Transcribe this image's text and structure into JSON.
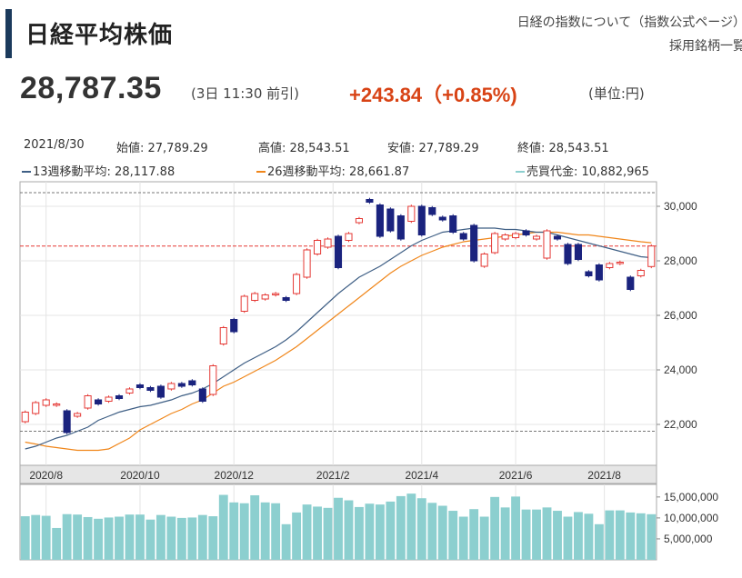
{
  "header": {
    "title": "日経平均株価",
    "links": [
      "日経の指数について（指数公式ページ）",
      "採用銘柄一覧"
    ]
  },
  "quote": {
    "price": "28,787.35",
    "time": "(3日 11:30 前引)",
    "change": "+243.84（+0.85%)",
    "unit": "(単位:円)"
  },
  "ohlc": {
    "date": "2021/8/30",
    "open": "始値: 27,789.29",
    "high": "高値: 28,543.51",
    "low": "安値: 27,789.29",
    "close": "終値: 28,543.51"
  },
  "ma": {
    "ma13": "13週移動平均: 28,117.88",
    "ma26": "26週移動平均: 28,661.87",
    "volume": "売買代金: 10,882,965"
  },
  "colors": {
    "up": "#e53935",
    "down": "#1a237e",
    "ma13": "#3f5f85",
    "ma26": "#f0861a",
    "volume": "#8ccfcf",
    "current_line": "#e53935",
    "ref_line": "#777777"
  },
  "chart_data": {
    "type": "candlestick",
    "x_tick_labels": [
      "2020/8",
      "2020/10",
      "2020/12",
      "2021/2",
      "2021/4",
      "2021/6",
      "2021/8"
    ],
    "x_tick_index": [
      2,
      11,
      20,
      29.5,
      38,
      47,
      55.5
    ],
    "ylim": [
      20500,
      30900
    ],
    "y_ticks": [
      22000,
      24000,
      26000,
      28000,
      30000
    ],
    "y_tick_labels": [
      "22,000",
      "24,000",
      "26,000",
      "28,000",
      "30,000"
    ],
    "current_price": 28543.51,
    "ref_lines": [
      30500,
      21750
    ],
    "candles": [
      [
        22100,
        22450
      ],
      [
        22400,
        22800
      ],
      [
        22700,
        22900
      ],
      [
        22700,
        22750
      ],
      [
        22500,
        21700
      ],
      [
        22300,
        22400
      ],
      [
        22600,
        23050
      ],
      [
        22900,
        22750
      ],
      [
        22850,
        23000
      ],
      [
        23050,
        22950
      ],
      [
        23150,
        23300
      ],
      [
        23450,
        23350
      ],
      [
        23350,
        23250
      ],
      [
        23400,
        23000
      ],
      [
        23300,
        23500
      ],
      [
        23500,
        23400
      ],
      [
        23600,
        23450
      ],
      [
        23300,
        22850
      ],
      [
        23100,
        24150
      ],
      [
        24950,
        25550
      ],
      [
        25850,
        25400
      ],
      [
        26150,
        26700
      ],
      [
        26550,
        26800
      ],
      [
        26600,
        26750
      ],
      [
        26750,
        26800
      ],
      [
        26650,
        26550
      ],
      [
        26800,
        27500
      ],
      [
        27400,
        28400
      ],
      [
        28250,
        28750
      ],
      [
        28500,
        28800
      ],
      [
        28900,
        27750
      ],
      [
        28750,
        29000
      ],
      [
        29400,
        29550
      ],
      [
        30250,
        30150
      ],
      [
        30050,
        28900
      ],
      [
        29900,
        29100
      ],
      [
        29650,
        28800
      ],
      [
        29450,
        30000
      ],
      [
        30000,
        28950
      ],
      [
        29950,
        29700
      ],
      [
        29600,
        29500
      ],
      [
        29650,
        29050
      ],
      [
        29000,
        28800
      ],
      [
        29300,
        28000
      ],
      [
        27800,
        28250
      ],
      [
        28300,
        29000
      ],
      [
        28800,
        28950
      ],
      [
        28850,
        29000
      ],
      [
        29100,
        28950
      ],
      [
        28800,
        28900
      ],
      [
        28100,
        29100
      ],
      [
        28900,
        28800
      ],
      [
        28600,
        27900
      ],
      [
        28600,
        28050
      ],
      [
        27600,
        27450
      ],
      [
        27850,
        27300
      ],
      [
        27750,
        27900
      ],
      [
        27900,
        27950
      ],
      [
        27400,
        26950
      ],
      [
        27450,
        27650
      ],
      [
        27790,
        28544
      ]
    ],
    "ma13": [
      21100,
      21200,
      21350,
      21500,
      21600,
      21750,
      21900,
      22150,
      22300,
      22450,
      22550,
      22650,
      22700,
      22800,
      22900,
      23050,
      23150,
      23300,
      23500,
      23750,
      24000,
      24250,
      24450,
      24650,
      24850,
      25100,
      25400,
      25750,
      26100,
      26450,
      26800,
      27100,
      27400,
      27600,
      27800,
      28050,
      28300,
      28550,
      28750,
      28900,
      29050,
      29100,
      29150,
      29200,
      29200,
      29200,
      29150,
      29150,
      29100,
      29050,
      29050,
      28950,
      28850,
      28750,
      28650,
      28550,
      28450,
      28350,
      28250,
      28150,
      28117.88
    ],
    "ma26": [
      21350,
      21280,
      21200,
      21150,
      21100,
      21050,
      21050,
      21050,
      21100,
      21300,
      21500,
      21800,
      22000,
      22200,
      22400,
      22550,
      22750,
      22900,
      23150,
      23400,
      23550,
      23750,
      23950,
      24150,
      24350,
      24600,
      24850,
      25150,
      25450,
      25750,
      26050,
      26350,
      26650,
      26950,
      27250,
      27550,
      27800,
      28000,
      28200,
      28350,
      28500,
      28600,
      28700,
      28750,
      28800,
      28850,
      28900,
      28950,
      29000,
      29050,
      29050,
      29050,
      29000,
      28950,
      28950,
      28900,
      28850,
      28800,
      28750,
      28700,
      28661.87
    ],
    "volume_ylim": [
      0,
      18000000
    ],
    "volume_ticks": [
      5000000,
      10000000,
      15000000
    ],
    "volume_tick_labels": [
      "5,000,000",
      "10,000,000",
      "15,000,000"
    ],
    "volume": [
      10400000,
      10700000,
      10500000,
      7600000,
      10900000,
      10800000,
      10200000,
      9800000,
      10100000,
      10300000,
      10800000,
      10800000,
      9600000,
      10700000,
      10300000,
      10000000,
      10100000,
      10700000,
      10400000,
      15500000,
      13700000,
      13500000,
      15400000,
      13700000,
      13500000,
      8500000,
      11300000,
      13200000,
      12700000,
      12400000,
      14800000,
      14200000,
      12600000,
      13400000,
      13200000,
      13900000,
      15200000,
      15800000,
      14700000,
      13600000,
      12900000,
      11700000,
      10300000,
      12100000,
      10300000,
      15000000,
      12500000,
      15100000,
      12000000,
      12000000,
      12500000,
      11700000,
      10300000,
      11400000,
      11000000,
      8500000,
      11800000,
      11800000,
      11300000,
      11100000,
      10882965
    ]
  }
}
